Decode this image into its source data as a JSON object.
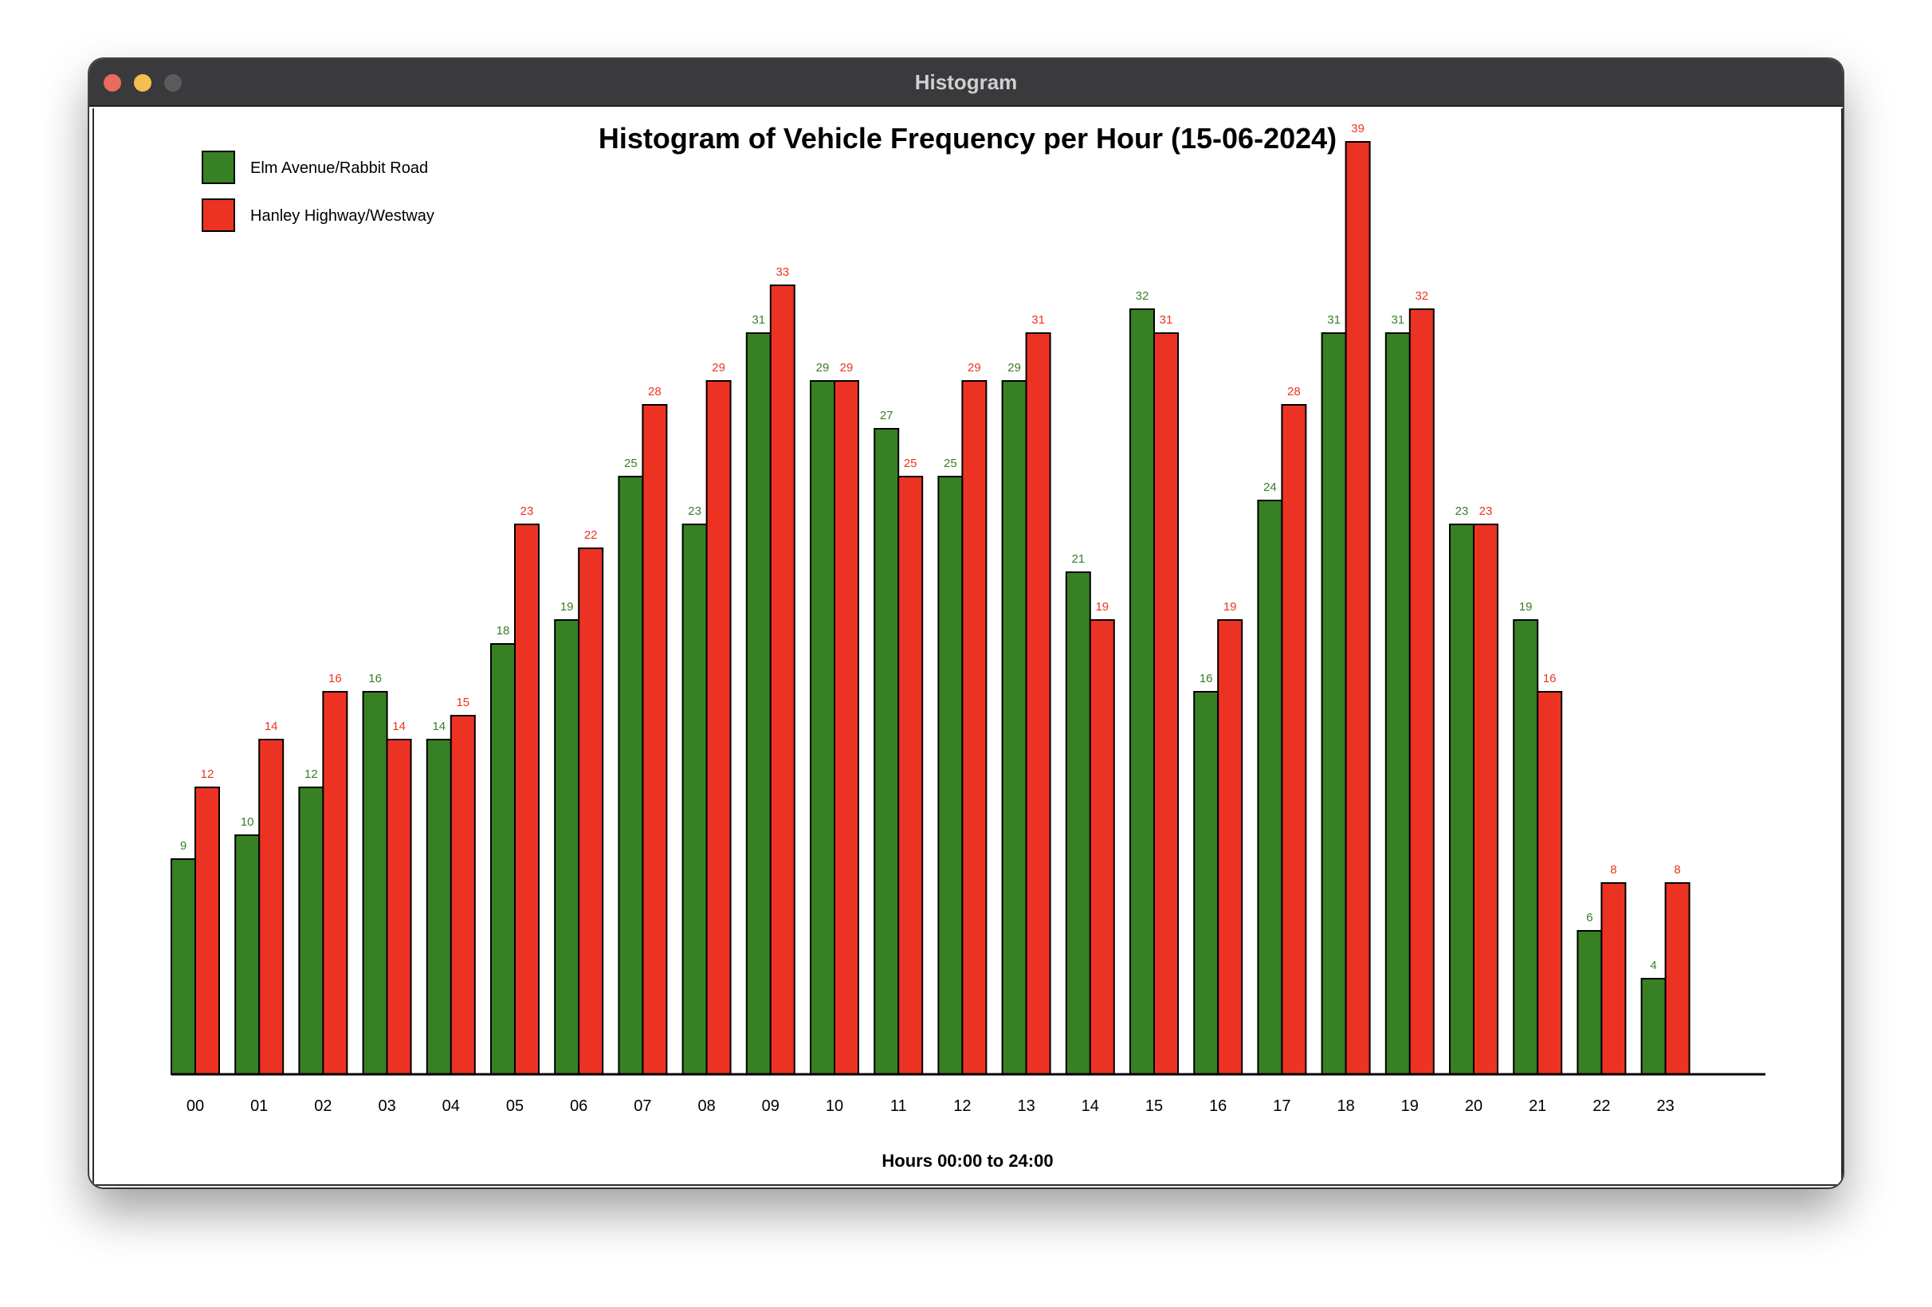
{
  "window": {
    "title": "Histogram"
  },
  "chart_data": {
    "type": "bar",
    "title": "Histogram of Vehicle Frequency per Hour (15-06-2024)",
    "xlabel": "Hours 00:00 to 24:00",
    "ylabel": "",
    "ylim": [
      0,
      39
    ],
    "grid": false,
    "legend_position": "top-left",
    "categories": [
      "00",
      "01",
      "02",
      "03",
      "04",
      "05",
      "06",
      "07",
      "08",
      "09",
      "10",
      "11",
      "12",
      "13",
      "14",
      "15",
      "16",
      "17",
      "18",
      "19",
      "20",
      "21",
      "22",
      "23"
    ],
    "series": [
      {
        "name": "Elm Avenue/Rabbit Road",
        "color": "#378024",
        "values": [
          9,
          10,
          12,
          16,
          14,
          18,
          19,
          25,
          23,
          31,
          29,
          27,
          25,
          29,
          21,
          32,
          16,
          24,
          31,
          31,
          23,
          19,
          6,
          4
        ]
      },
      {
        "name": "Hanley Highway/Westway",
        "color": "#ec3323",
        "values": [
          12,
          14,
          16,
          14,
          15,
          23,
          22,
          28,
          29,
          33,
          29,
          25,
          29,
          31,
          19,
          31,
          19,
          28,
          39,
          32,
          23,
          16,
          8,
          8
        ]
      }
    ]
  }
}
